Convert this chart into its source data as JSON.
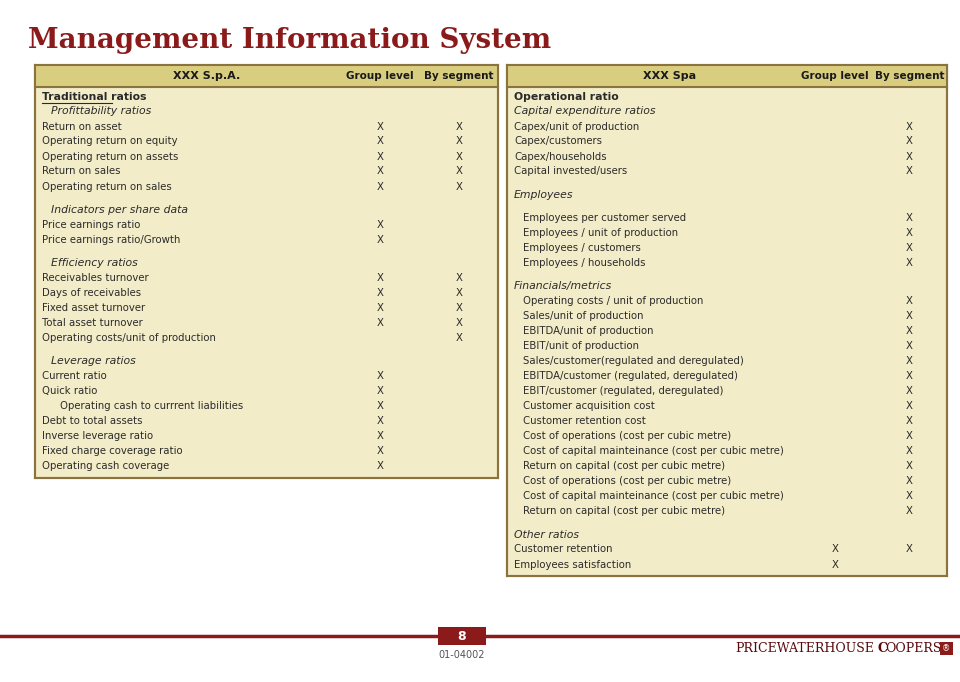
{
  "title": "Management Information System",
  "bg_color": "#FFFFFF",
  "table_bg": "#F2ECC8",
  "header_bg": "#D9CE80",
  "border_color": "#8B7340",
  "title_color": "#8B1A1A",
  "text_color": "#2A2A2A",
  "footer_line_color": "#8B1A1A",
  "page_number": "8",
  "page_ref": "01-04002",
  "left_header": [
    "XXX S.p.A.",
    "Group level",
    "By segment"
  ],
  "right_header": [
    "XXX Spa",
    "Group level",
    "By segment"
  ],
  "left_rows": [
    {
      "text": "Traditional ratios",
      "style": "bold_ul",
      "indent": 0,
      "g": "",
      "s": ""
    },
    {
      "text": "Profittability ratios",
      "style": "italic",
      "indent": 1,
      "g": "",
      "s": ""
    },
    {
      "text": "Return on asset",
      "style": "normal",
      "indent": 0,
      "g": "X",
      "s": "X"
    },
    {
      "text": "Operating return on equity",
      "style": "normal",
      "indent": 0,
      "g": "X",
      "s": "X"
    },
    {
      "text": "Operating return on assets",
      "style": "normal",
      "indent": 0,
      "g": "X",
      "s": "X"
    },
    {
      "text": "Return on sales",
      "style": "normal",
      "indent": 0,
      "g": "X",
      "s": "X"
    },
    {
      "text": "Operating return on sales",
      "style": "normal",
      "indent": 0,
      "g": "X",
      "s": "X"
    },
    {
      "text": " ",
      "style": "blank",
      "indent": 0,
      "g": "",
      "s": ""
    },
    {
      "text": "Indicators per share data",
      "style": "italic",
      "indent": 1,
      "g": "",
      "s": ""
    },
    {
      "text": "Price earnings ratio",
      "style": "normal",
      "indent": 0,
      "g": "X",
      "s": ""
    },
    {
      "text": "Price earnings ratio/Growth",
      "style": "normal",
      "indent": 0,
      "g": "X",
      "s": ""
    },
    {
      "text": " ",
      "style": "blank",
      "indent": 0,
      "g": "",
      "s": ""
    },
    {
      "text": "Efficiency ratios",
      "style": "italic",
      "indent": 1,
      "g": "",
      "s": ""
    },
    {
      "text": "Receivables turnover",
      "style": "normal",
      "indent": 0,
      "g": "X",
      "s": "X"
    },
    {
      "text": "Days of receivables",
      "style": "normal",
      "indent": 0,
      "g": "X",
      "s": "X"
    },
    {
      "text": "Fixed asset turnover",
      "style": "normal",
      "indent": 0,
      "g": "X",
      "s": "X"
    },
    {
      "text": "Total asset turnover",
      "style": "normal",
      "indent": 0,
      "g": "X",
      "s": "X"
    },
    {
      "text": "Operating costs/unit of production",
      "style": "normal",
      "indent": 0,
      "g": "",
      "s": "X"
    },
    {
      "text": " ",
      "style": "blank",
      "indent": 0,
      "g": "",
      "s": ""
    },
    {
      "text": "Leverage ratios",
      "style": "italic",
      "indent": 1,
      "g": "",
      "s": ""
    },
    {
      "text": "Current ratio",
      "style": "normal",
      "indent": 0,
      "g": "X",
      "s": ""
    },
    {
      "text": "Quick ratio",
      "style": "normal",
      "indent": 0,
      "g": "X",
      "s": ""
    },
    {
      "text": "Operating cash to currrent liabilities",
      "style": "normal",
      "indent": 2,
      "g": "X",
      "s": ""
    },
    {
      "text": "Debt to total assets",
      "style": "normal",
      "indent": 0,
      "g": "X",
      "s": ""
    },
    {
      "text": "Inverse leverage ratio",
      "style": "normal",
      "indent": 0,
      "g": "X",
      "s": ""
    },
    {
      "text": "Fixed charge coverage ratio",
      "style": "normal",
      "indent": 0,
      "g": "X",
      "s": ""
    },
    {
      "text": "Operating cash coverage",
      "style": "normal",
      "indent": 0,
      "g": "X",
      "s": ""
    }
  ],
  "right_rows": [
    {
      "text": "Operational ratio",
      "style": "bold",
      "indent": 0,
      "g": "",
      "s": ""
    },
    {
      "text": "Capital expenditure ratios",
      "style": "italic",
      "indent": 0,
      "g": "",
      "s": ""
    },
    {
      "text": "Capex/unit of production",
      "style": "normal",
      "indent": 0,
      "g": "",
      "s": "X"
    },
    {
      "text": "Capex/customers",
      "style": "normal",
      "indent": 0,
      "g": "",
      "s": "X"
    },
    {
      "text": "Capex/households",
      "style": "normal",
      "indent": 0,
      "g": "",
      "s": "X"
    },
    {
      "text": "Capital invested/users",
      "style": "normal",
      "indent": 0,
      "g": "",
      "s": "X"
    },
    {
      "text": " ",
      "style": "blank",
      "indent": 0,
      "g": "",
      "s": ""
    },
    {
      "text": "Employees",
      "style": "italic",
      "indent": 0,
      "g": "",
      "s": ""
    },
    {
      "text": " ",
      "style": "blank",
      "indent": 0,
      "g": "",
      "s": ""
    },
    {
      "text": "Employees per customer served",
      "style": "normal",
      "indent": 1,
      "g": "",
      "s": "X"
    },
    {
      "text": "Employees / unit of production",
      "style": "normal",
      "indent": 1,
      "g": "",
      "s": "X"
    },
    {
      "text": "Employees / customers",
      "style": "normal",
      "indent": 1,
      "g": "",
      "s": "X"
    },
    {
      "text": "Employees / households",
      "style": "normal",
      "indent": 1,
      "g": "",
      "s": "X"
    },
    {
      "text": " ",
      "style": "blank",
      "indent": 0,
      "g": "",
      "s": ""
    },
    {
      "text": "Financials/metrics",
      "style": "italic",
      "indent": 0,
      "g": "",
      "s": ""
    },
    {
      "text": "Operating costs / unit of production",
      "style": "normal",
      "indent": 1,
      "g": "",
      "s": "X"
    },
    {
      "text": "Sales/unit of production",
      "style": "normal",
      "indent": 1,
      "g": "",
      "s": "X"
    },
    {
      "text": "EBITDA/unit of production",
      "style": "normal",
      "indent": 1,
      "g": "",
      "s": "X"
    },
    {
      "text": "EBIT/unit of production",
      "style": "normal",
      "indent": 1,
      "g": "",
      "s": "X"
    },
    {
      "text": "Sales/customer(regulated and deregulated)",
      "style": "normal",
      "indent": 1,
      "g": "",
      "s": "X"
    },
    {
      "text": "EBITDA/customer (regulated, deregulated)",
      "style": "normal",
      "indent": 1,
      "g": "",
      "s": "X"
    },
    {
      "text": "EBIT/customer (regulated, deregulated)",
      "style": "normal",
      "indent": 1,
      "g": "",
      "s": "X"
    },
    {
      "text": "Customer acquisition cost",
      "style": "normal",
      "indent": 1,
      "g": "",
      "s": "X"
    },
    {
      "text": "Customer retention cost",
      "style": "normal",
      "indent": 1,
      "g": "",
      "s": "X"
    },
    {
      "text": "Cost of operations (cost per cubic metre)",
      "style": "normal",
      "indent": 1,
      "g": "",
      "s": "X"
    },
    {
      "text": "Cost of capital mainteinance (cost per cubic metre)",
      "style": "normal",
      "indent": 1,
      "g": "",
      "s": "X"
    },
    {
      "text": "Return on capital (cost per cubic metre)",
      "style": "normal",
      "indent": 1,
      "g": "",
      "s": "X"
    },
    {
      "text": "Cost of operations (cost per cubic metre)",
      "style": "normal",
      "indent": 1,
      "g": "",
      "s": "X"
    },
    {
      "text": "Cost of capital mainteinance (cost per cubic metre)",
      "style": "normal",
      "indent": 1,
      "g": "",
      "s": "X"
    },
    {
      "text": "Return on capital (cost per cubic metre)",
      "style": "normal",
      "indent": 1,
      "g": "",
      "s": "X"
    },
    {
      "text": " ",
      "style": "blank",
      "indent": 0,
      "g": "",
      "s": ""
    },
    {
      "text": "Other ratios",
      "style": "italic",
      "indent": 0,
      "g": "",
      "s": ""
    },
    {
      "text": "Customer retention",
      "style": "normal",
      "indent": 0,
      "g": "X",
      "s": "X"
    },
    {
      "text": "Employees satisfaction",
      "style": "normal",
      "indent": 0,
      "g": "X",
      "s": ""
    }
  ]
}
